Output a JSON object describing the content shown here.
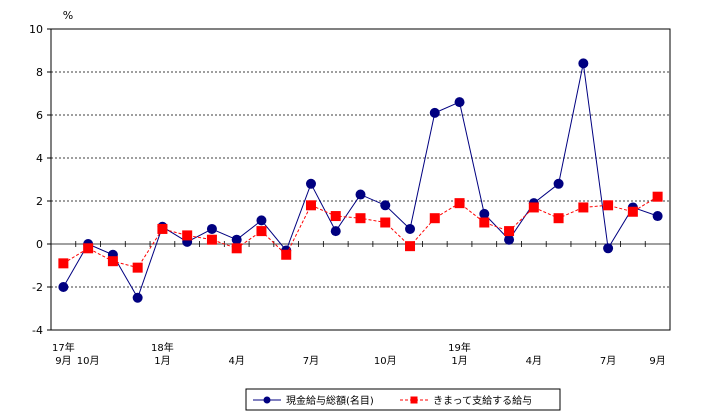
{
  "chart_data": {
    "type": "line",
    "unit_label": "%",
    "ylim": [
      -4,
      10
    ],
    "yticks": [
      -4,
      -2,
      0,
      2,
      4,
      6,
      8,
      10
    ],
    "grid": "horizontal-dashed",
    "legend_position": "bottom",
    "x_labels": [
      {
        "index": 0,
        "lines": [
          "17年",
          "9月"
        ]
      },
      {
        "index": 1,
        "lines": [
          "",
          "10月"
        ]
      },
      {
        "index": 4,
        "lines": [
          "18年",
          "1月"
        ]
      },
      {
        "index": 7,
        "lines": [
          "",
          "4月"
        ]
      },
      {
        "index": 10,
        "lines": [
          "",
          "7月"
        ]
      },
      {
        "index": 13,
        "lines": [
          "",
          "10月"
        ]
      },
      {
        "index": 16,
        "lines": [
          "19年",
          "1月"
        ]
      },
      {
        "index": 19,
        "lines": [
          "",
          "4月"
        ]
      },
      {
        "index": 22,
        "lines": [
          "",
          "7月"
        ]
      },
      {
        "index": 24,
        "lines": [
          "",
          "9月"
        ]
      }
    ],
    "series": [
      {
        "name": "現金給与総額(名目)",
        "color": "#000080",
        "marker": "circle",
        "line": "solid",
        "values": [
          -2.0,
          0.0,
          -0.5,
          -2.5,
          0.8,
          0.1,
          0.7,
          0.2,
          1.1,
          -0.3,
          2.8,
          0.6,
          2.3,
          1.8,
          0.7,
          6.1,
          6.6,
          1.4,
          0.2,
          1.9,
          2.8,
          8.4,
          -0.2,
          1.7,
          1.3
        ]
      },
      {
        "name": "きまって支給する給与",
        "color": "#ff0000",
        "marker": "square",
        "line": "dashed",
        "values": [
          -0.9,
          -0.2,
          -0.8,
          -1.1,
          0.7,
          0.4,
          0.2,
          -0.2,
          0.6,
          -0.5,
          1.8,
          1.3,
          1.2,
          1.0,
          -0.1,
          1.2,
          1.9,
          1.0,
          0.6,
          1.7,
          1.2,
          1.7,
          1.8,
          1.5,
          2.2
        ]
      }
    ]
  }
}
